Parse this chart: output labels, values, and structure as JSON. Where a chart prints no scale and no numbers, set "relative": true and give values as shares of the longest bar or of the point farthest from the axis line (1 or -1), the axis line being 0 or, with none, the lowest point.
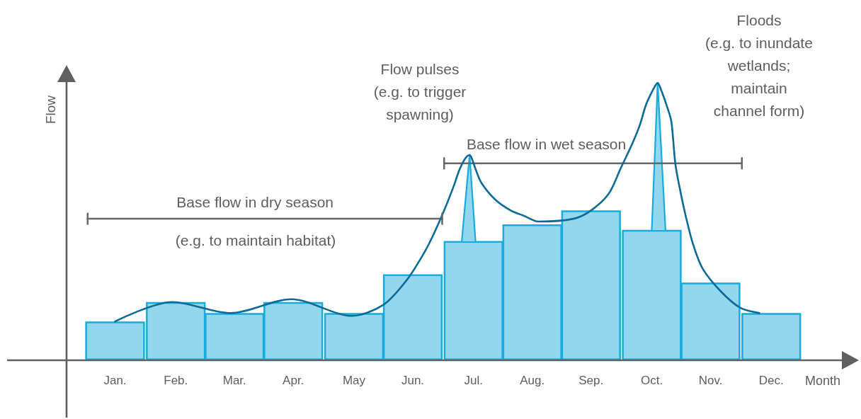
{
  "chart_data": {
    "type": "bar",
    "relative": true,
    "xlabel": "Month",
    "ylabel": "Flow",
    "marker": "none",
    "xlim": [
      "--01-01",
      "--12-31"
    ],
    "xticks": [
      {
        "value": "--01-16",
        "label": "Jan."
      },
      {
        "value": "--02-16",
        "label": "Feb."
      },
      {
        "value": "--03-18",
        "label": "Mar."
      },
      {
        "value": "--04-17",
        "label": "Apr."
      },
      {
        "value": "--05-18",
        "label": "May"
      },
      {
        "value": "--06-17",
        "label": "Jun."
      },
      {
        "value": "--07-18",
        "label": "Jul."
      },
      {
        "value": "--08-17",
        "label": "Aug."
      },
      {
        "value": "--09-16",
        "label": "Sep."
      },
      {
        "value": "--10-17",
        "label": "Oct."
      },
      {
        "value": "--11-16",
        "label": "Nov."
      },
      {
        "value": "--12-17",
        "label": "Dec."
      }
    ],
    "x": [
      "--01-16",
      "--02-16",
      "--03-18",
      "--04-17",
      "--05-18",
      "--06-17",
      "--07-18",
      "--08-17",
      "--09-16",
      "--10-17",
      "--11-16",
      "--12-17"
    ],
    "annotations": [
      "Flow pulses\n(e.g. to trigger\nspawning)",
      "Floods\n(e.g. to inundate\nwetlands;\nmaintain\nchannel form)",
      "(e.g. to maintain habitat)"
    ],
    "series": [
      {
        "color": "#93d7ee",
        "values": [
          0.14,
          0.21,
          0.17,
          0.21,
          0.17,
          0.31,
          0.43,
          0.49,
          0.54,
          0.47,
          0.28,
          0.17
        ]
      },
      {
        "type": "area",
        "color": "#93d7ee",
        "x": [
          "--07-12",
          "--07-16",
          "--07-19"
        ],
        "values": [
          0.43,
          0.74,
          0.43
        ]
      },
      {
        "type": "area",
        "color": "#93d7ee",
        "x": [
          "--10-17",
          "--10-20",
          "--10-24"
        ],
        "values": [
          0.47,
          1.0,
          0.47
        ]
      },
      {
        "type": "line",
        "name": "Base flow in dry season",
        "color": "#666666",
        "x": [
          "--01-02",
          "--07-02"
        ],
        "values": [
          0.51,
          0.51
        ]
      },
      {
        "type": "line",
        "name": "Base flow in wet season",
        "color": "#666666",
        "x": [
          "--07-03",
          "--12-02"
        ],
        "values": [
          0.71,
          0.71
        ]
      },
      {
        "type": "line",
        "color": "#0b6a96",
        "x": [
          "--01-16",
          "--02-14",
          "--03-16",
          "--04-16",
          "--05-17",
          "--06-02",
          "--06-14",
          "--06-23",
          "--06-28",
          "--07-03",
          "--07-08",
          "--07-11",
          "--07-14",
          "--07-16",
          "--07-17",
          "--07-19",
          "--07-22",
          "--07-29",
          "--08-06",
          "--08-13",
          "--08-20",
          "--09-07",
          "--09-16",
          "--09-25",
          "--10-01",
          "--10-07",
          "--10-11",
          "--10-14",
          "--10-18",
          "--10-20",
          "--10-22",
          "--10-25",
          "--10-27",
          "--10-29",
          "--10-31",
          "--11-03",
          "--11-07",
          "--11-12",
          "--11-21",
          "--12-01",
          "--12-11"
        ],
        "values": [
          0.14,
          0.21,
          0.17,
          0.22,
          0.16,
          0.2,
          0.29,
          0.39,
          0.46,
          0.54,
          0.63,
          0.69,
          0.73,
          0.74,
          0.73,
          0.69,
          0.64,
          0.58,
          0.54,
          0.52,
          0.5,
          0.51,
          0.54,
          0.6,
          0.69,
          0.78,
          0.85,
          0.92,
          0.98,
          1.0,
          0.97,
          0.91,
          0.86,
          0.71,
          0.63,
          0.53,
          0.42,
          0.33,
          0.25,
          0.19,
          0.17
        ]
      }
    ]
  }
}
